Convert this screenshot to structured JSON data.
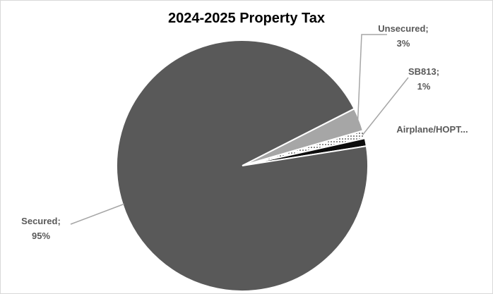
{
  "chart_data": {
    "type": "pie",
    "title": "2024-2025 Property Tax",
    "slices": [
      {
        "name": "Unsecured",
        "label_lines": [
          "Unsecured;",
          "3%"
        ],
        "value": 3,
        "color": "#a6a6a6",
        "pattern": "solid"
      },
      {
        "name": "SB813",
        "label_lines": [
          "SB813;",
          "1%"
        ],
        "value": 1,
        "color": "#ffffff",
        "pattern": "dotted"
      },
      {
        "name": "Airplane/HOPT...",
        "label_lines": [
          "Airplane/HOPT..."
        ],
        "value": 1,
        "color": "#0d0d0d",
        "pattern": "solid"
      },
      {
        "name": "Secured",
        "label_lines": [
          "Secured;",
          "95%"
        ],
        "value": 95,
        "color": "#595959",
        "pattern": "solid"
      }
    ],
    "legend": "none",
    "start_angle_deg": 63,
    "direction": "clockwise"
  }
}
